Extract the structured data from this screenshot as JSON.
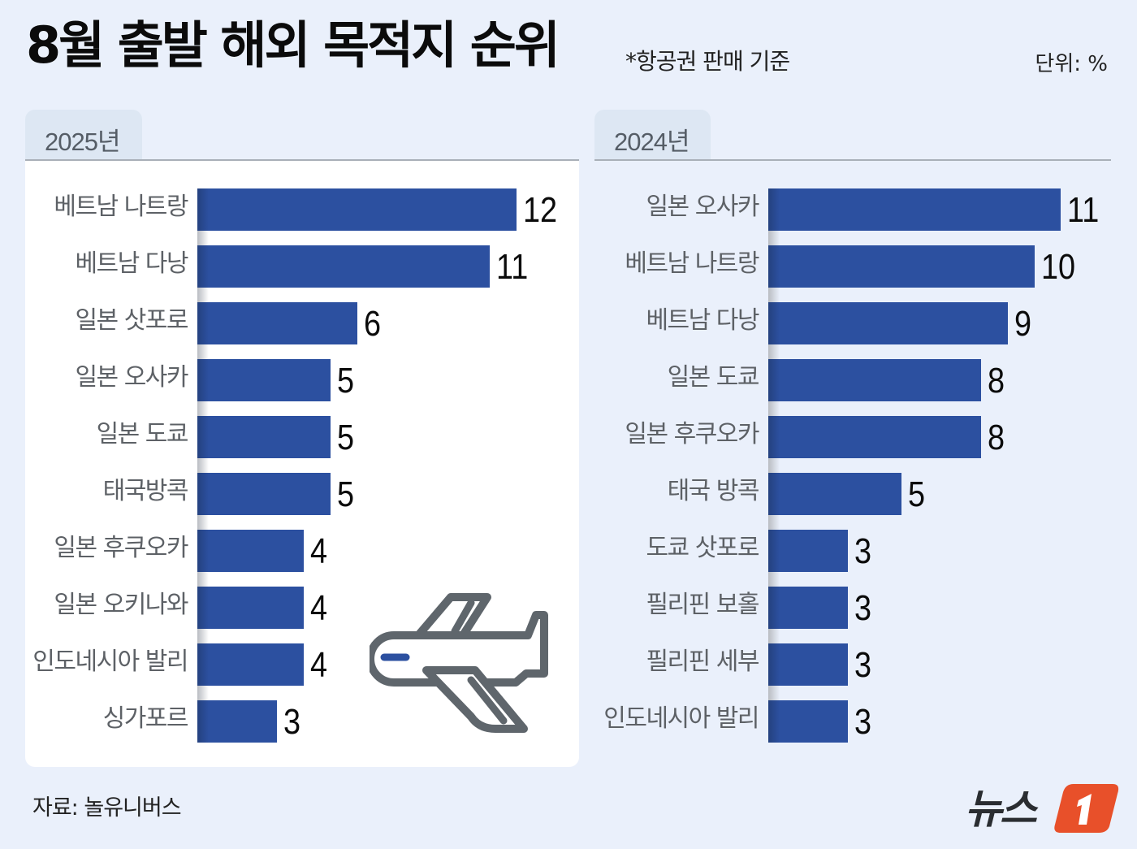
{
  "header": {
    "title": "8월 출발 해외 목적지 순위",
    "note": "*항공권 판매 기준",
    "unit": "단위: %"
  },
  "footer": {
    "source": "자료: 놀유니버스",
    "logo_text": "뉴스",
    "logo_mark": "1"
  },
  "colors": {
    "background": "#eaf0fb",
    "bar": "#2c50a0",
    "tab": "#dde7f3",
    "label": "#5d6166",
    "plane_stroke": "#5f666c",
    "logo_orange": "#e8502a"
  },
  "panels": [
    {
      "tab": "2025년"
    },
    {
      "tab": "2024년"
    }
  ],
  "chart_data": [
    {
      "type": "bar",
      "orientation": "horizontal",
      "title": "2025년",
      "categories": [
        "베트남 나트랑",
        "베트남 다낭",
        "일본 삿포로",
        "일본 오사카",
        "일본 도쿄",
        "태국방콕",
        "일본 후쿠오카",
        "일본 오키나와",
        "인도네시아 발리",
        "싱가포르"
      ],
      "values": [
        12,
        11,
        6,
        5,
        5,
        5,
        4,
        4,
        4,
        3
      ],
      "unit": "%",
      "xlabel": "",
      "ylabel": "",
      "grid": false,
      "legend": null
    },
    {
      "type": "bar",
      "orientation": "horizontal",
      "title": "2024년",
      "categories": [
        "일본 오사카",
        "베트남 나트랑",
        "베트남 다낭",
        "일본 도쿄",
        "일본 후쿠오카",
        "태국 방콕",
        "도쿄 삿포로",
        "필리핀 보홀",
        "필리핀 세부",
        "인도네시아 발리"
      ],
      "values": [
        11,
        10,
        9,
        8,
        8,
        5,
        3,
        3,
        3,
        3
      ],
      "unit": "%",
      "xlabel": "",
      "ylabel": "",
      "grid": false,
      "legend": null
    }
  ]
}
